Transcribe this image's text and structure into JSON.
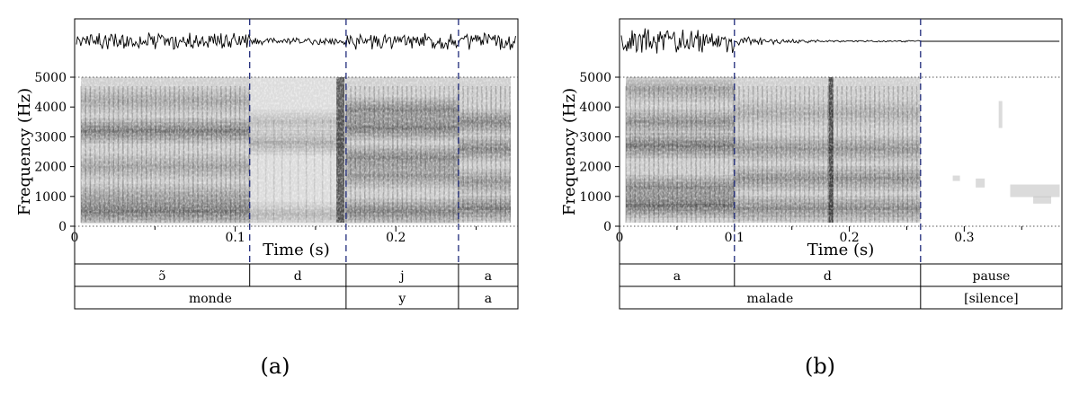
{
  "panels": [
    {
      "caption": "(a)",
      "ylabel": "Frequency (Hz)",
      "xlabel": "Time (s)",
      "ylim": [
        0,
        5000
      ],
      "duration": 0.276,
      "yticks": [
        {
          "value": 0,
          "label": "0"
        },
        {
          "value": 1000,
          "label": "1000"
        },
        {
          "value": 2000,
          "label": "2000"
        },
        {
          "value": 3000,
          "label": "3000"
        },
        {
          "value": 4000,
          "label": "4000"
        },
        {
          "value": 5000,
          "label": "5000"
        }
      ],
      "xticks": [
        {
          "value": 0,
          "label": "0"
        },
        {
          "value": 0.1,
          "label": "0.1"
        },
        {
          "value": 0.2,
          "label": "0.2"
        }
      ],
      "minor_xticks": [
        0.05,
        0.15,
        0.25
      ],
      "boundaries": [
        0.109,
        0.169,
        0.239
      ],
      "waveform_end": 0.276,
      "tier1": [
        {
          "label": "ɔ̃",
          "start": 0,
          "end": 0.109
        },
        {
          "label": "d",
          "start": 0.109,
          "end": 0.169
        },
        {
          "label": "j",
          "start": 0.169,
          "end": 0.239
        },
        {
          "label": "a",
          "start": 0.239,
          "end": 0.276
        }
      ],
      "tier2": [
        {
          "label": "monde",
          "start": 0,
          "end": 0.169
        },
        {
          "label": "y",
          "start": 0.169,
          "end": 0.239
        },
        {
          "label": "a",
          "start": 0.239,
          "end": 0.276
        }
      ]
    },
    {
      "caption": "(b)",
      "ylabel": "Frequency (Hz)",
      "xlabel": "Time (s)",
      "ylim": [
        0,
        5000
      ],
      "duration": 0.385,
      "yticks": [
        {
          "value": 0,
          "label": "0"
        },
        {
          "value": 1000,
          "label": "1000"
        },
        {
          "value": 2000,
          "label": "2000"
        },
        {
          "value": 3000,
          "label": "3000"
        },
        {
          "value": 4000,
          "label": "4000"
        },
        {
          "value": 5000,
          "label": "5000"
        }
      ],
      "xticks": [
        {
          "value": 0,
          "label": "0"
        },
        {
          "value": 0.1,
          "label": "0.1"
        },
        {
          "value": 0.2,
          "label": "0.2"
        },
        {
          "value": 0.3,
          "label": "0.3"
        }
      ],
      "minor_xticks": [
        0.05,
        0.15,
        0.25,
        0.35
      ],
      "boundaries": [
        0.1,
        0.262
      ],
      "waveform_end": 0.262,
      "tier1": [
        {
          "label": "a",
          "start": 0,
          "end": 0.1
        },
        {
          "label": "d",
          "start": 0.1,
          "end": 0.262
        },
        {
          "label": "pause",
          "start": 0.262,
          "end": 0.385
        }
      ],
      "tier2": [
        {
          "label": "malade",
          "start": 0,
          "end": 0.262
        },
        {
          "label": "[silence]",
          "start": 0.262,
          "end": 0.385
        }
      ]
    }
  ]
}
